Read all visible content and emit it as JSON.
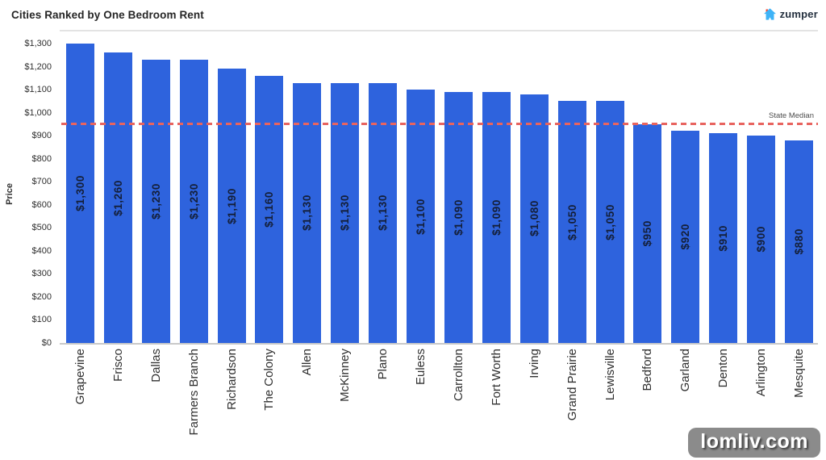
{
  "header": {
    "logo_text": "zumper",
    "logo_house_color": "#3eb3f7",
    "logo_chimney_color": "#f04a38",
    "logo_text_color": "#24303f"
  },
  "chart_data": {
    "type": "bar",
    "title": "Cities Ranked by One Bedroom Rent",
    "xlabel": "",
    "ylabel": "Price",
    "ylim": [
      0,
      1300
    ],
    "ytick_step": 100,
    "ytick_labels": [
      "$0",
      "$100",
      "$200",
      "$300",
      "$400",
      "$500",
      "$600",
      "$700",
      "$800",
      "$900",
      "$1,000",
      "$1,100",
      "$1,200",
      "$1,300"
    ],
    "grid": false,
    "legend": "none",
    "categories": [
      "Grapevine",
      "Frisco",
      "Dallas",
      "Farmers Branch",
      "Richardson",
      "The Colony",
      "Allen",
      "McKinney",
      "Plano",
      "Euless",
      "Carrollton",
      "Fort Worth",
      "Irving",
      "Grand Prairie",
      "Lewisville",
      "Bedford",
      "Garland",
      "Denton",
      "Arlington",
      "Mesquite"
    ],
    "values": [
      1300,
      1260,
      1230,
      1230,
      1190,
      1160,
      1130,
      1130,
      1130,
      1100,
      1090,
      1090,
      1080,
      1050,
      1050,
      950,
      920,
      910,
      900,
      880
    ],
    "bar_labels": [
      "$1,300",
      "$1,260",
      "$1,230",
      "$1,230",
      "$1,190",
      "$1,160",
      "$1,130",
      "$1,130",
      "$1,130",
      "$1,100",
      "$1,090",
      "$1,090",
      "$1,080",
      "$1,050",
      "$1,050",
      "$950",
      "$920",
      "$910",
      "$900",
      "$880"
    ],
    "bar_color": "#2e63dd",
    "bar_label_color": "#141f38",
    "median_line": {
      "label": "State Median",
      "value": 955,
      "color": "#e8645f"
    }
  },
  "watermark": {
    "text": "lomliv.com"
  }
}
